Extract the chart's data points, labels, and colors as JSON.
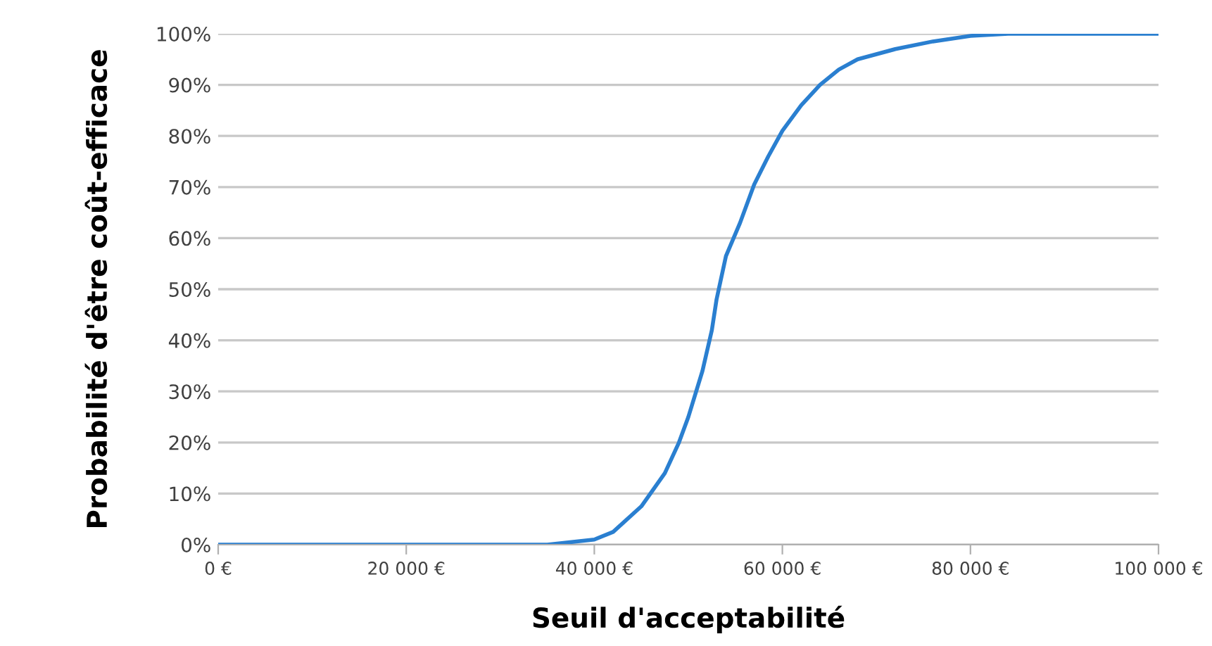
{
  "chart_data": {
    "type": "line",
    "xlabel": "Seuil d'acceptabilité",
    "ylabel": "Probabilité d'être coût-efficace",
    "series": [
      {
        "color": "#2a7fd0",
        "x": [
          0,
          10000,
          20000,
          30000,
          35000,
          40000,
          42000,
          45000,
          47500,
          49000,
          50000,
          51500,
          52500,
          53000,
          54000,
          55500,
          57000,
          58500,
          60000,
          62000,
          64000,
          66000,
          68000,
          72000,
          76000,
          80000,
          84000,
          90000,
          100000
        ],
        "values": [
          0,
          0,
          0,
          0,
          0,
          1,
          2.5,
          7.5,
          14,
          20,
          25,
          34,
          42,
          48,
          56.5,
          63,
          70.5,
          76,
          81,
          86,
          90,
          93,
          95,
          97,
          98.5,
          99.6,
          100,
          100,
          100
        ]
      }
    ],
    "xlim": [
      0,
      100000
    ],
    "ylim": [
      0,
      100
    ],
    "xticks": [
      {
        "value": 0,
        "label": "0 €"
      },
      {
        "value": 20000,
        "label": "20 000 €"
      },
      {
        "value": 40000,
        "label": "40 000 €"
      },
      {
        "value": 60000,
        "label": "60 000 €"
      },
      {
        "value": 80000,
        "label": "80 000 €"
      },
      {
        "value": 100000,
        "label": "100 000 €"
      }
    ],
    "yticks": [
      {
        "value": 0,
        "label": "0%"
      },
      {
        "value": 10,
        "label": "10%"
      },
      {
        "value": 20,
        "label": "20%"
      },
      {
        "value": 30,
        "label": "30%"
      },
      {
        "value": 40,
        "label": "40%"
      },
      {
        "value": 50,
        "label": "50%"
      },
      {
        "value": 60,
        "label": "60%"
      },
      {
        "value": 70,
        "label": "70%"
      },
      {
        "value": 80,
        "label": "80%"
      },
      {
        "value": 90,
        "label": "90%"
      },
      {
        "value": 100,
        "label": "100%"
      }
    ],
    "grid": "y",
    "marker": "none",
    "line_style": "solid",
    "legend": false
  }
}
